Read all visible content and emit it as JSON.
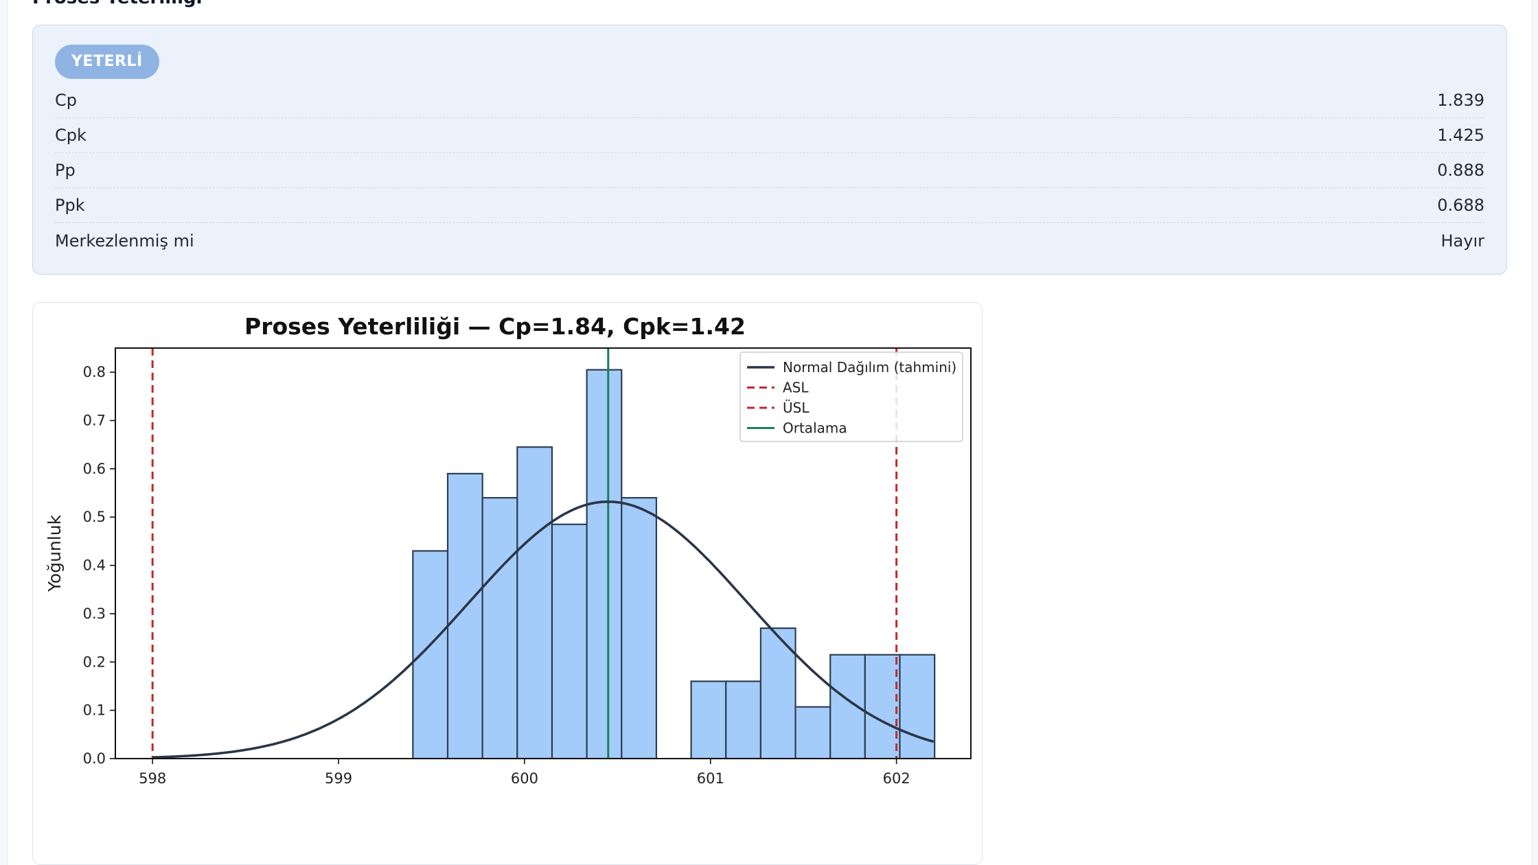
{
  "section": {
    "title": "Proses Yeterliliği"
  },
  "capability": {
    "status_badge": "YETERLİ",
    "metrics": [
      {
        "label": "Cp",
        "value": "1.839"
      },
      {
        "label": "Cpk",
        "value": "1.425"
      },
      {
        "label": "Pp",
        "value": "0.888"
      },
      {
        "label": "Ppk",
        "value": "0.688"
      },
      {
        "label": "Merkezlenmiş mi",
        "value": "Hayır"
      }
    ]
  },
  "colors": {
    "bar_fill": "#a4ccfa",
    "bar_edge": "#2f3e52",
    "curve": "#2b3647",
    "spec_lines": "#c0282d",
    "mean_line": "#1a7f5a",
    "badge": "#8fb4e3"
  },
  "chart_data": {
    "type": "bar",
    "title": "Proses Yeterliliği — Cp=1.84, Cpk=1.42",
    "xlabel": "",
    "ylabel": "Yoğunluk",
    "xlim": [
      597.8,
      602.4
    ],
    "ylim": [
      0,
      0.85
    ],
    "x_ticks": [
      598,
      599,
      600,
      601,
      602
    ],
    "y_ticks": [
      0.0,
      0.1,
      0.2,
      0.3,
      0.4,
      0.5,
      0.6,
      0.7,
      0.8
    ],
    "bin_width": 0.187,
    "bins": [
      {
        "x": 599.4,
        "density": 0.43
      },
      {
        "x": 599.587,
        "density": 0.59
      },
      {
        "x": 599.774,
        "density": 0.54
      },
      {
        "x": 599.961,
        "density": 0.645
      },
      {
        "x": 600.148,
        "density": 0.485
      },
      {
        "x": 600.335,
        "density": 0.805
      },
      {
        "x": 600.522,
        "density": 0.54
      },
      {
        "x": 600.709,
        "density": 0.0
      },
      {
        "x": 600.896,
        "density": 0.16
      },
      {
        "x": 601.083,
        "density": 0.16
      },
      {
        "x": 601.27,
        "density": 0.27
      },
      {
        "x": 601.457,
        "density": 0.107
      },
      {
        "x": 601.644,
        "density": 0.215
      },
      {
        "x": 601.831,
        "density": 0.215
      },
      {
        "x": 602.018,
        "density": 0.215
      }
    ],
    "normal_fit": {
      "mean": 600.45,
      "sigma": 0.75
    },
    "lines": {
      "asl": 598.0,
      "usl": 602.0,
      "mean": 600.45
    },
    "legend": {
      "placement": "top-right",
      "entries": [
        "Normal Dağılım (tahmini)",
        "ASL",
        "ÜSL",
        "Ortalama"
      ]
    },
    "grid": false
  }
}
